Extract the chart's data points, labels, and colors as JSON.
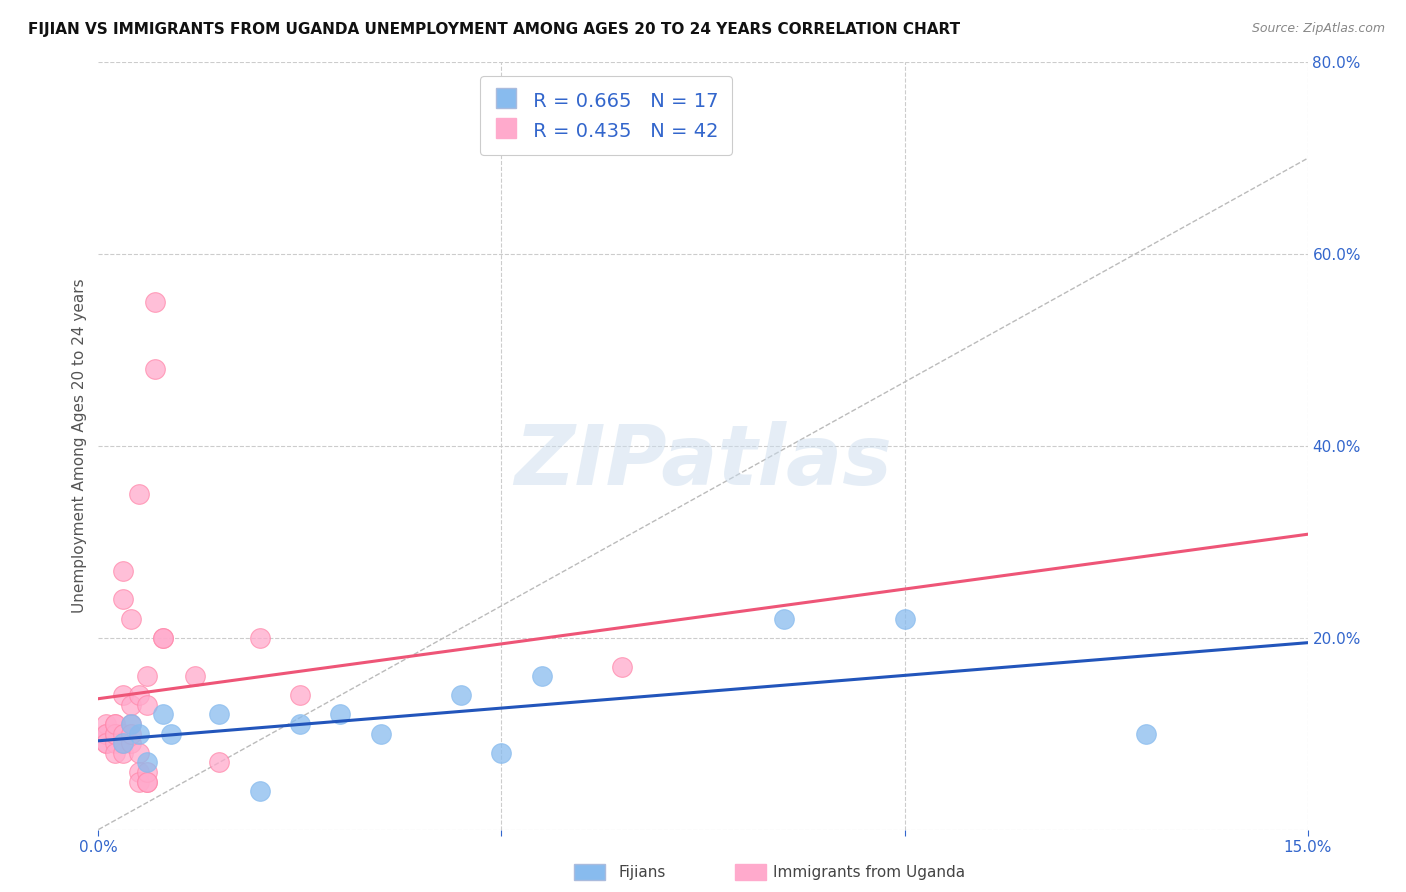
{
  "title": "FIJIAN VS IMMIGRANTS FROM UGANDA UNEMPLOYMENT AMONG AGES 20 TO 24 YEARS CORRELATION CHART",
  "source": "Source: ZipAtlas.com",
  "ylabel": "Unemployment Among Ages 20 to 24 years",
  "xlim": [
    0.0,
    0.15
  ],
  "ylim": [
    0.0,
    0.8
  ],
  "xtick_pos": [
    0.0,
    0.05,
    0.1,
    0.15
  ],
  "xtick_labels": [
    "0.0%",
    "",
    "",
    "15.0%"
  ],
  "yticks_right": [
    0.0,
    0.2,
    0.4,
    0.6,
    0.8
  ],
  "ytick_labels_right": [
    "",
    "20.0%",
    "40.0%",
    "60.0%",
    "80.0%"
  ],
  "fijian_color": "#88BBEE",
  "fijian_edge_color": "#88BBEE",
  "uganda_color": "#FFAACC",
  "uganda_edge_color": "#FF88AA",
  "fijian_R": 0.665,
  "fijian_N": 17,
  "uganda_R": 0.435,
  "uganda_N": 42,
  "fijian_points": [
    [
      0.003,
      0.09
    ],
    [
      0.004,
      0.11
    ],
    [
      0.005,
      0.1
    ],
    [
      0.006,
      0.07
    ],
    [
      0.008,
      0.12
    ],
    [
      0.009,
      0.1
    ],
    [
      0.015,
      0.12
    ],
    [
      0.02,
      0.04
    ],
    [
      0.025,
      0.11
    ],
    [
      0.03,
      0.12
    ],
    [
      0.035,
      0.1
    ],
    [
      0.045,
      0.14
    ],
    [
      0.05,
      0.08
    ],
    [
      0.055,
      0.16
    ],
    [
      0.085,
      0.22
    ],
    [
      0.1,
      0.22
    ],
    [
      0.13,
      0.1
    ]
  ],
  "uganda_points": [
    [
      0.001,
      0.1
    ],
    [
      0.001,
      0.1
    ],
    [
      0.001,
      0.11
    ],
    [
      0.001,
      0.09
    ],
    [
      0.001,
      0.1
    ],
    [
      0.001,
      0.09
    ],
    [
      0.002,
      0.09
    ],
    [
      0.002,
      0.11
    ],
    [
      0.002,
      0.1
    ],
    [
      0.002,
      0.1
    ],
    [
      0.002,
      0.08
    ],
    [
      0.002,
      0.11
    ],
    [
      0.003,
      0.1
    ],
    [
      0.003,
      0.08
    ],
    [
      0.003,
      0.09
    ],
    [
      0.003,
      0.14
    ],
    [
      0.003,
      0.24
    ],
    [
      0.003,
      0.27
    ],
    [
      0.004,
      0.11
    ],
    [
      0.004,
      0.09
    ],
    [
      0.004,
      0.22
    ],
    [
      0.004,
      0.1
    ],
    [
      0.004,
      0.13
    ],
    [
      0.005,
      0.35
    ],
    [
      0.005,
      0.08
    ],
    [
      0.005,
      0.06
    ],
    [
      0.005,
      0.05
    ],
    [
      0.005,
      0.14
    ],
    [
      0.006,
      0.16
    ],
    [
      0.006,
      0.13
    ],
    [
      0.006,
      0.05
    ],
    [
      0.006,
      0.06
    ],
    [
      0.006,
      0.05
    ],
    [
      0.007,
      0.48
    ],
    [
      0.007,
      0.55
    ],
    [
      0.008,
      0.2
    ],
    [
      0.008,
      0.2
    ],
    [
      0.012,
      0.16
    ],
    [
      0.015,
      0.07
    ],
    [
      0.02,
      0.2
    ],
    [
      0.025,
      0.14
    ],
    [
      0.065,
      0.17
    ]
  ],
  "fijian_line_color": "#2255BB",
  "uganda_line_color": "#EE5577",
  "diagonal_color": "#BBBBBB",
  "watermark": "ZIPatlas",
  "background_color": "#FFFFFF",
  "grid_color": "#CCCCCC",
  "title_fontsize": 11,
  "source_fontsize": 9,
  "tick_fontsize": 11,
  "ylabel_fontsize": 11,
  "legend_fontsize": 14,
  "watermark_fontsize": 60
}
